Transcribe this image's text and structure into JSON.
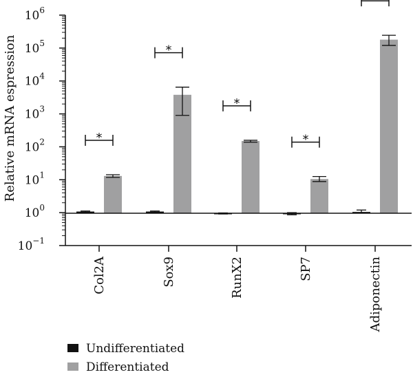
{
  "chart_data": {
    "type": "bar",
    "scale": "log",
    "ylabel": "Relative mRNA espression",
    "ylim": [
      0.1,
      1000000
    ],
    "ytick_base": "10",
    "ytick_exponents": [
      "−1",
      "0",
      "1",
      "2",
      "3",
      "4",
      "5",
      "6"
    ],
    "categories": [
      "Col2A",
      "Sox9",
      "RunX2",
      "SP7",
      "Adiponectin"
    ],
    "series": [
      {
        "name": "Undifferentiated",
        "color": "#111111",
        "values": [
          1.08,
          1.08,
          0.95,
          0.96,
          1.05
        ],
        "err_low": [
          1.02,
          1.02,
          0.91,
          0.86,
          0.97
        ],
        "err_high": [
          1.12,
          1.12,
          0.98,
          1.0,
          1.2
        ]
      },
      {
        "name": "Differentiated",
        "color": "#a0a0a1",
        "values": [
          13,
          3800,
          150,
          10.5,
          180000
        ],
        "err_low": [
          11.8,
          900,
          138,
          8.8,
          120000
        ],
        "err_high": [
          14.2,
          6500,
          158,
          12.5,
          245000
        ]
      }
    ],
    "significance": [
      "*",
      "*",
      "*",
      "*",
      "*"
    ],
    "legend_position": "bottom-left",
    "grid": false
  }
}
